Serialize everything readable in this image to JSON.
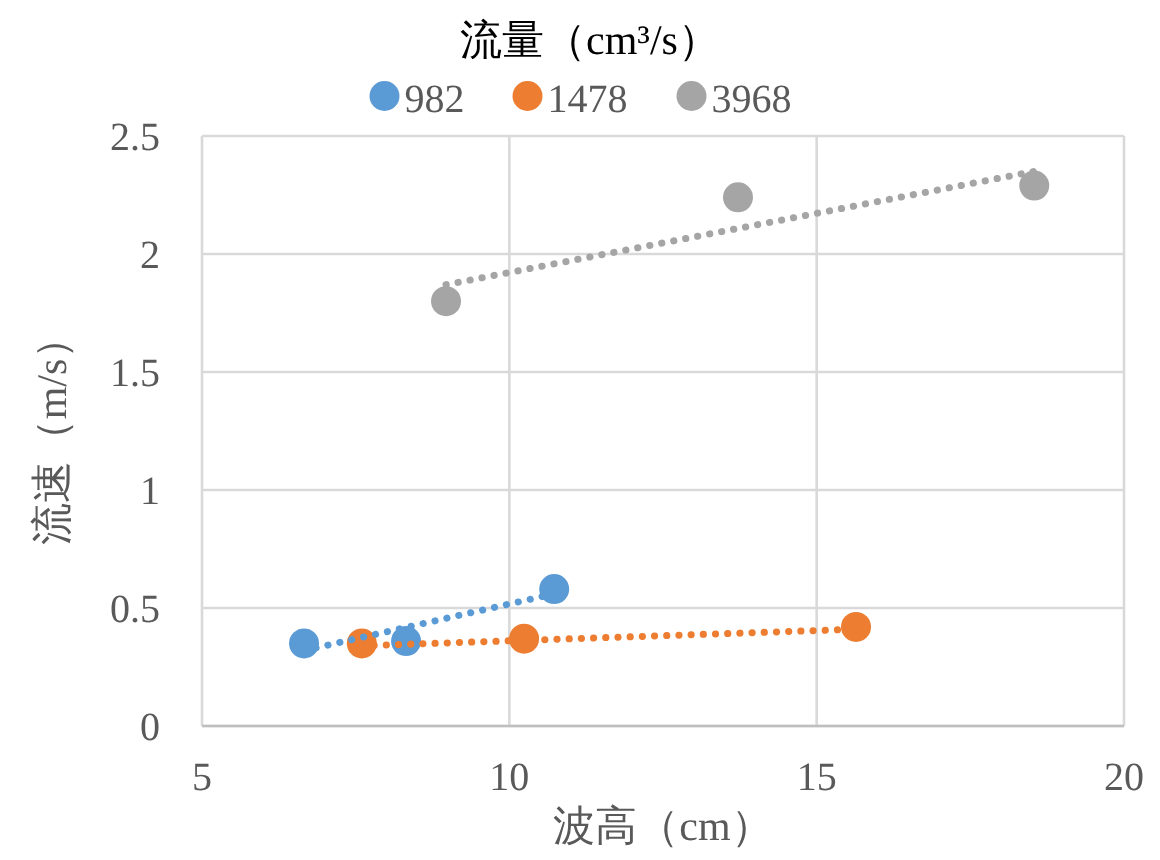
{
  "chart_data": {
    "type": "scatter",
    "legend_title": "流量（cm³/s）",
    "xlabel": "波高（cm）",
    "ylabel": "流速（m/s）",
    "xlim": [
      5,
      20
    ],
    "xticks": [
      5,
      10,
      15,
      20
    ],
    "ylim": [
      0,
      2.5
    ],
    "yticks": [
      0,
      0.5,
      1,
      1.5,
      2,
      2.5
    ],
    "grid": true,
    "legend": "top",
    "marker": "circle",
    "series": [
      {
        "name": "982",
        "color": "#5b9bd5",
        "x": [
          6.66,
          8.32,
          10.73
        ],
        "values": [
          0.35,
          0.36,
          0.58
        ]
      },
      {
        "name": "1478",
        "color": "#ed7d31",
        "x": [
          7.6,
          10.24,
          15.64
        ],
        "values": [
          0.35,
          0.37,
          0.42
        ]
      },
      {
        "name": "3968",
        "color": "#a5a5a5",
        "x": [
          8.97,
          13.72,
          18.54
        ],
        "values": [
          1.8,
          2.24,
          2.29
        ]
      },
      {
        "type": "line",
        "marker": "none",
        "line_style": "dotted",
        "color": "#5b9bd5",
        "x": [
          6.66,
          10.73
        ],
        "values": [
          0.32,
          0.56
        ]
      },
      {
        "type": "line",
        "marker": "none",
        "line_style": "dotted",
        "color": "#ed7d31",
        "x": [
          7.6,
          15.64
        ],
        "values": [
          0.34,
          0.41
        ]
      },
      {
        "type": "line",
        "marker": "none",
        "line_style": "dotted",
        "color": "#a5a5a5",
        "x": [
          8.97,
          18.54
        ],
        "values": [
          1.87,
          2.35
        ]
      }
    ]
  }
}
